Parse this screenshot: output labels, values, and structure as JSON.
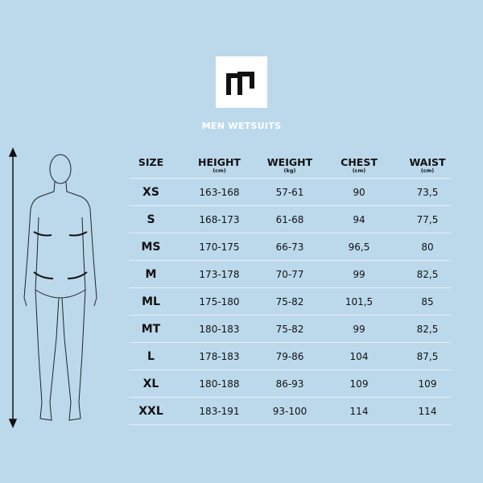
{
  "brand": {
    "logo": "m-logo"
  },
  "title": "MEN WETSUITS",
  "table": {
    "headers": [
      {
        "label": "SIZE",
        "unit": ""
      },
      {
        "label": "HEIGHT",
        "unit": "(cm)"
      },
      {
        "label": "WEIGHT",
        "unit": "(kg)"
      },
      {
        "label": "CHEST",
        "unit": "(cm)"
      },
      {
        "label": "WAIST",
        "unit": "(cm)"
      }
    ],
    "rows": [
      [
        "XS",
        "163-168",
        "57-61",
        "90",
        "73,5"
      ],
      [
        "S",
        "168-173",
        "61-68",
        "94",
        "77,5"
      ],
      [
        "MS",
        "170-175",
        "66-73",
        "96,5",
        "80"
      ],
      [
        "M",
        "173-178",
        "70-77",
        "99",
        "82,5"
      ],
      [
        "ML",
        "175-180",
        "75-82",
        "101,5",
        "85"
      ],
      [
        "MT",
        "180-183",
        "75-82",
        "99",
        "82,5"
      ],
      [
        "L",
        "178-183",
        "79-86",
        "104",
        "87,5"
      ],
      [
        "XL",
        "180-188",
        "86-93",
        "109",
        "109"
      ],
      [
        "XXL",
        "183-191",
        "93-100",
        "114",
        "114"
      ]
    ]
  },
  "colors": {
    "background": "#bcd9ec",
    "divider": "#e3eff7",
    "text": "#111111"
  }
}
